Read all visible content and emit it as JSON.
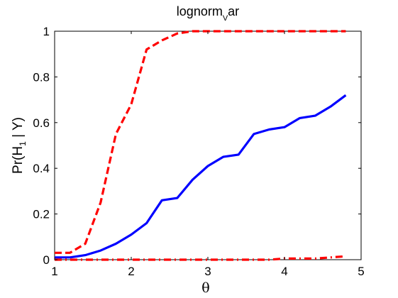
{
  "chart_data": {
    "type": "line",
    "title": {
      "main": "lognorm",
      "sub": "V",
      "tail": "ar"
    },
    "xlabel": "θ",
    "ylabel": {
      "pre": "Pr(H",
      "sub": "1",
      "post": " | Y)"
    },
    "xlim": [
      1,
      5
    ],
    "ylim": [
      0,
      1
    ],
    "xticks": [
      1,
      2,
      3,
      4,
      5
    ],
    "yticks": [
      0,
      0.2,
      0.4,
      0.6,
      0.8,
      1
    ],
    "ytick_labels": [
      "0",
      "0.2",
      "0.4",
      "0.6",
      "0.8",
      "1"
    ],
    "grid": false,
    "legend": "none",
    "series": [
      {
        "color": "#0000ff",
        "style": "solid",
        "points": [
          [
            1.0,
            0.01
          ],
          [
            1.2,
            0.01
          ],
          [
            1.4,
            0.02
          ],
          [
            1.6,
            0.04
          ],
          [
            1.8,
            0.07
          ],
          [
            2.0,
            0.11
          ],
          [
            2.2,
            0.16
          ],
          [
            2.4,
            0.26
          ],
          [
            2.6,
            0.27
          ],
          [
            2.8,
            0.35
          ],
          [
            3.0,
            0.41
          ],
          [
            3.2,
            0.45
          ],
          [
            3.4,
            0.46
          ],
          [
            3.6,
            0.55
          ],
          [
            3.8,
            0.57
          ],
          [
            4.0,
            0.58
          ],
          [
            4.2,
            0.62
          ],
          [
            4.4,
            0.63
          ],
          [
            4.6,
            0.67
          ],
          [
            4.8,
            0.72
          ]
        ]
      },
      {
        "color": "#ff0000",
        "style": "dashed",
        "points": [
          [
            1.0,
            0.03
          ],
          [
            1.2,
            0.03
          ],
          [
            1.4,
            0.07
          ],
          [
            1.6,
            0.25
          ],
          [
            1.8,
            0.55
          ],
          [
            2.0,
            0.68
          ],
          [
            2.2,
            0.92
          ],
          [
            2.4,
            0.96
          ],
          [
            2.6,
            0.99
          ],
          [
            2.8,
            1.0
          ],
          [
            3.0,
            1.0
          ],
          [
            3.2,
            1.0
          ],
          [
            3.4,
            1.0
          ],
          [
            3.6,
            1.0
          ],
          [
            3.8,
            1.0
          ],
          [
            4.0,
            1.0
          ],
          [
            4.2,
            1.0
          ],
          [
            4.4,
            1.0
          ],
          [
            4.6,
            1.0
          ],
          [
            4.8,
            1.0
          ]
        ]
      },
      {
        "color": "#ff0000",
        "style": "dashdot",
        "points": [
          [
            1.0,
            0.0
          ],
          [
            1.2,
            0.0
          ],
          [
            1.4,
            0.0
          ],
          [
            1.6,
            0.0
          ],
          [
            1.8,
            0.0
          ],
          [
            2.0,
            0.0
          ],
          [
            2.2,
            0.0
          ],
          [
            2.4,
            0.0
          ],
          [
            2.6,
            0.0
          ],
          [
            2.8,
            0.0
          ],
          [
            3.0,
            0.0
          ],
          [
            3.2,
            0.0
          ],
          [
            3.4,
            0.0
          ],
          [
            3.6,
            0.0
          ],
          [
            3.8,
            0.0
          ],
          [
            4.0,
            0.005
          ],
          [
            4.2,
            0.005
          ],
          [
            4.4,
            0.005
          ],
          [
            4.6,
            0.01
          ],
          [
            4.8,
            0.015
          ]
        ]
      }
    ]
  }
}
